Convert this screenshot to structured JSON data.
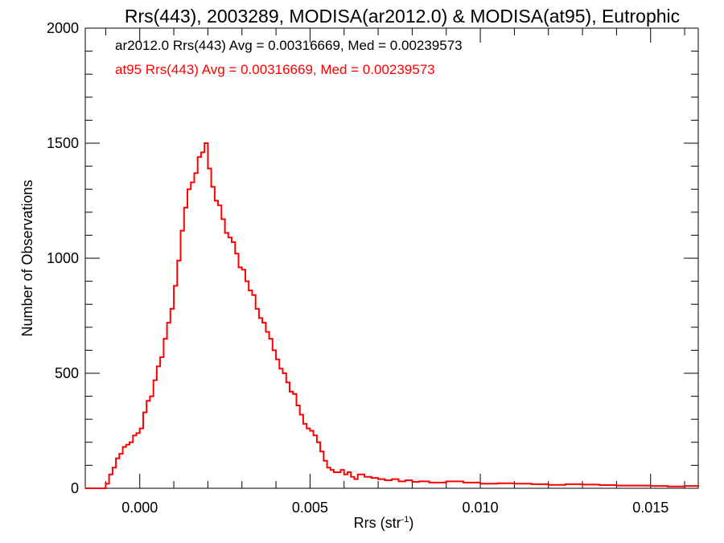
{
  "chart_data": {
    "type": "line",
    "title": "Rrs(443), 2003289, MODISA(ar2012.0) & MODISA(at95), Eutrophic",
    "xlabel": "Rrs (str",
    "xlabel_superscript": "-1",
    "xlabel_suffix": ")",
    "ylabel": "Number of Observations",
    "xlim": [
      -0.0016,
      0.0164
    ],
    "ylim": [
      0,
      2000
    ],
    "xticks": [
      0.0,
      0.005,
      0.01,
      0.015
    ],
    "xtick_labels": [
      "0.000",
      "0.005",
      "0.010",
      "0.015"
    ],
    "yticks": [
      0,
      500,
      1000,
      1500,
      2000
    ],
    "ytick_labels": [
      "0",
      "500",
      "1000",
      "1500",
      "2000"
    ],
    "grid": false,
    "annotations": [
      {
        "text": "ar2012.0 Rrs(443) Avg = 0.00316669, Med = 0.00239573",
        "color": "#000000"
      },
      {
        "text": "at95 Rrs(443) Avg = 0.00316669, Med = 0.00239573",
        "color": "#ff0000"
      }
    ],
    "series": [
      {
        "color": "#ff0000",
        "x": [
          -0.0016,
          -0.001,
          -0.0009,
          -0.0008,
          -0.0007,
          -0.0006,
          -0.0005,
          -0.0004,
          -0.0003,
          -0.0002,
          -0.0001,
          0.0,
          0.0001,
          0.0002,
          0.0003,
          0.0004,
          0.0005,
          0.0006,
          0.0007,
          0.0008,
          0.0009,
          0.001,
          0.0011,
          0.0012,
          0.0013,
          0.0014,
          0.0015,
          0.0016,
          0.0017,
          0.0018,
          0.0019,
          0.002,
          0.0021,
          0.0022,
          0.0023,
          0.0024,
          0.0025,
          0.0026,
          0.0027,
          0.0028,
          0.0029,
          0.003,
          0.0031,
          0.0032,
          0.0033,
          0.0034,
          0.0035,
          0.0036,
          0.0037,
          0.0038,
          0.0039,
          0.004,
          0.0041,
          0.0042,
          0.0043,
          0.0044,
          0.0045,
          0.0046,
          0.0047,
          0.0048,
          0.0049,
          0.005,
          0.0051,
          0.0052,
          0.0053,
          0.0054,
          0.0055,
          0.0056,
          0.0057,
          0.0058,
          0.0059,
          0.006,
          0.0061,
          0.0062,
          0.0063,
          0.0064,
          0.0066,
          0.0068,
          0.007,
          0.0072,
          0.0074,
          0.0076,
          0.0078,
          0.008,
          0.0082,
          0.0085,
          0.009,
          0.0095,
          0.01,
          0.0105,
          0.011,
          0.0115,
          0.012,
          0.0125,
          0.013,
          0.0135,
          0.014,
          0.0145,
          0.015,
          0.0155,
          0.016,
          0.0164
        ],
        "y": [
          0,
          20,
          60,
          90,
          130,
          150,
          180,
          190,
          200,
          230,
          240,
          260,
          330,
          380,
          400,
          470,
          530,
          570,
          650,
          720,
          780,
          880,
          990,
          1120,
          1220,
          1300,
          1330,
          1370,
          1440,
          1460,
          1500,
          1390,
          1310,
          1250,
          1230,
          1170,
          1110,
          1090,
          1070,
          1020,
          960,
          950,
          900,
          860,
          840,
          780,
          740,
          720,
          680,
          650,
          600,
          560,
          520,
          500,
          460,
          420,
          410,
          360,
          320,
          280,
          260,
          250,
          230,
          200,
          160,
          120,
          90,
          80,
          70,
          70,
          80,
          60,
          70,
          50,
          40,
          60,
          50,
          45,
          40,
          35,
          40,
          30,
          35,
          28,
          30,
          25,
          30,
          25,
          20,
          22,
          20,
          18,
          15,
          18,
          16,
          14,
          12,
          12,
          10,
          8,
          10,
          6
        ]
      }
    ]
  }
}
